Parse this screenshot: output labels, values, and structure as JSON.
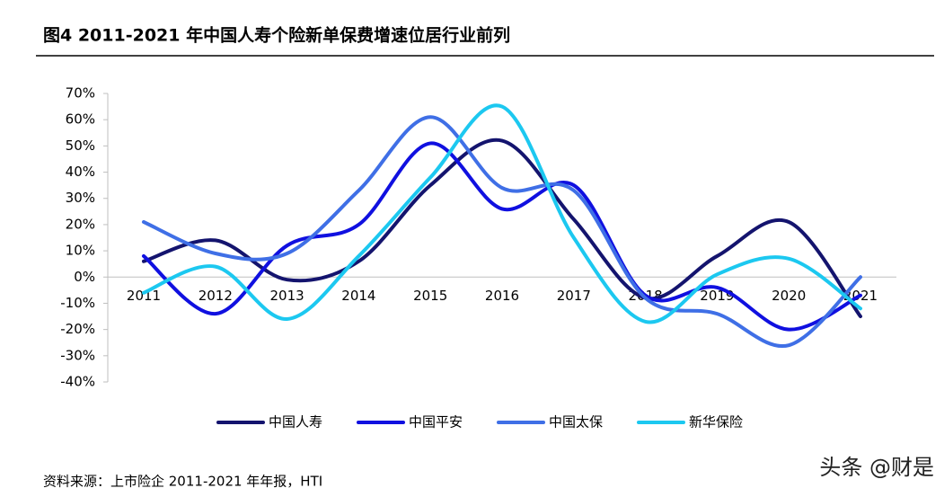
{
  "chart_data": {
    "type": "line",
    "title": "图4   2011-2021 年中国人寿个险新单保费增速位居行业前列",
    "source": "资料来源：上市险企 2011-2021 年年报，HTI",
    "watermark": "头条 @财是",
    "categories": [
      "2011",
      "2012",
      "2013",
      "2014",
      "2015",
      "2016",
      "2017",
      "2018",
      "2019",
      "2020",
      "2021"
    ],
    "series": [
      {
        "name": "中国人寿",
        "color": "#14146e",
        "values": [
          6,
          14,
          -1,
          6,
          35,
          52,
          22,
          -8,
          8,
          21,
          -15
        ]
      },
      {
        "name": "中国平安",
        "color": "#1010e0",
        "values": [
          8,
          -14,
          12,
          20,
          51,
          26,
          35,
          -7,
          -4,
          -20,
          -7
        ]
      },
      {
        "name": "中国太保",
        "color": "#3f6fe6",
        "values": [
          21,
          9,
          9,
          33,
          61,
          34,
          33,
          -8,
          -14,
          -26,
          0
        ]
      },
      {
        "name": "新华保险",
        "color": "#1cc8f0",
        "values": [
          -6,
          4,
          -16,
          8,
          38,
          65,
          15,
          -17,
          1,
          7,
          -12
        ]
      }
    ],
    "ylim": [
      -40,
      70
    ],
    "yticks": [
      {
        "value": -40,
        "label": "-40%"
      },
      {
        "value": -30,
        "label": "-30%"
      },
      {
        "value": -20,
        "label": "-20%"
      },
      {
        "value": -10,
        "label": "-10%"
      },
      {
        "value": 0,
        "label": "0%"
      },
      {
        "value": 10,
        "label": "10%"
      },
      {
        "value": 20,
        "label": "20%"
      },
      {
        "value": 30,
        "label": "30%"
      },
      {
        "value": 40,
        "label": "40%"
      },
      {
        "value": 50,
        "label": "50%"
      },
      {
        "value": 60,
        "label": "60%"
      },
      {
        "value": 70,
        "label": "70%"
      }
    ],
    "smooth": true,
    "legend": "bottom"
  }
}
